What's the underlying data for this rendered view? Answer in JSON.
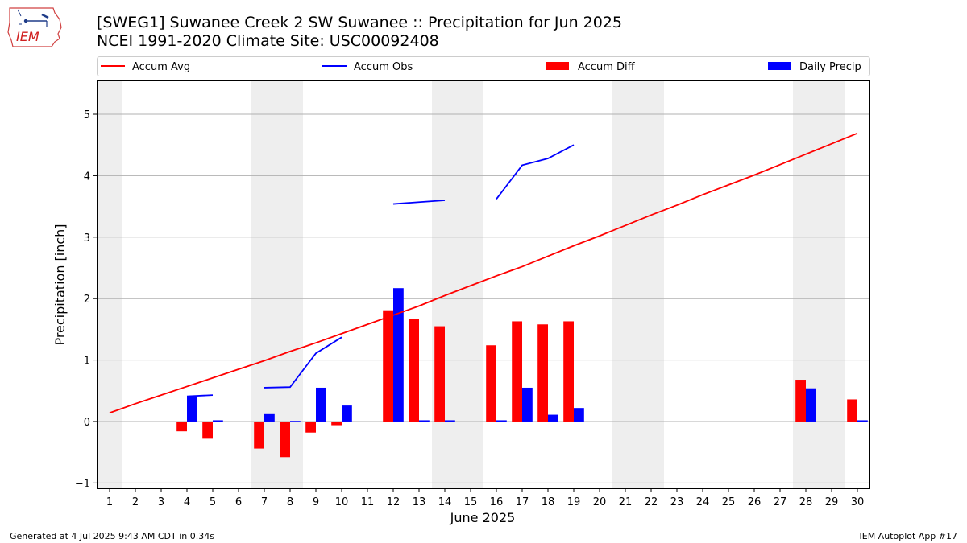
{
  "header": {
    "title_line1": "[SWEG1] Suwanee Creek 2 SW Suwanee :: Precipitation for Jun 2025",
    "title_line2": "NCEI 1991-2020 Climate Site: USC00092408",
    "logo_text": "IEM"
  },
  "footer": {
    "generated": "Generated at 4 Jul 2025 9:43 AM CDT in 0.34s",
    "app": "IEM Autoplot App #17"
  },
  "colors": {
    "avg": "#ff0000",
    "obs": "#0000ff",
    "diff": "#ff0000",
    "daily": "#0000ff",
    "weekend": "#eeeeee",
    "grid": "#b0b0b0"
  },
  "chart_data": {
    "type": "bar",
    "xlabel": "June 2025",
    "ylabel": "Precipitation [inch]",
    "xlim": [
      0.5,
      30.5
    ],
    "ylim": [
      -1.1,
      5.55
    ],
    "yticks": [
      -1,
      0,
      1,
      2,
      3,
      4,
      5
    ],
    "days": [
      1,
      2,
      3,
      4,
      5,
      6,
      7,
      8,
      9,
      10,
      11,
      12,
      13,
      14,
      15,
      16,
      17,
      18,
      19,
      20,
      21,
      22,
      23,
      24,
      25,
      26,
      27,
      28,
      29,
      30
    ],
    "weekend_spans": [
      [
        0.5,
        1.5
      ],
      [
        6.5,
        8.5
      ],
      [
        13.5,
        15.5
      ],
      [
        20.5,
        22.5
      ],
      [
        27.5,
        29.5
      ]
    ],
    "legend": [
      {
        "label": "Accum Avg",
        "kind": "line",
        "color": "#ff0000"
      },
      {
        "label": "Accum Obs",
        "kind": "line",
        "color": "#0000ff"
      },
      {
        "label": "Accum Diff",
        "kind": "bar",
        "color": "#ff0000"
      },
      {
        "label": "Daily Precip",
        "kind": "bar",
        "color": "#0000ff"
      }
    ],
    "legend_position": "top",
    "series": [
      {
        "name": "Accum Avg",
        "type": "line",
        "values": [
          0.14,
          0.29,
          0.43,
          0.57,
          0.71,
          0.85,
          0.99,
          1.14,
          1.28,
          1.43,
          1.58,
          1.73,
          1.88,
          2.05,
          2.21,
          2.37,
          2.52,
          2.69,
          2.86,
          3.02,
          3.19,
          3.36,
          3.52,
          3.69,
          3.85,
          4.01,
          4.18,
          4.35,
          4.52,
          4.69
        ]
      },
      {
        "name": "Accum Obs",
        "type": "line",
        "values": [
          null,
          null,
          null,
          0.41,
          0.43,
          null,
          0.55,
          0.56,
          1.11,
          1.37,
          null,
          3.54,
          3.57,
          3.6,
          null,
          3.62,
          4.17,
          4.28,
          4.5,
          null,
          null,
          null,
          null,
          null,
          null,
          null,
          null,
          null,
          null,
          null
        ]
      },
      {
        "name": "Accum Diff",
        "type": "bar",
        "values": [
          null,
          null,
          null,
          -0.16,
          -0.28,
          null,
          -0.44,
          -0.58,
          -0.18,
          -0.06,
          null,
          1.81,
          1.67,
          1.55,
          null,
          1.24,
          1.63,
          1.58,
          1.63,
          null,
          null,
          null,
          null,
          null,
          null,
          null,
          null,
          0.68,
          null,
          0.36
        ]
      },
      {
        "name": "Daily Precip",
        "type": "bar",
        "values": [
          null,
          null,
          null,
          0.41,
          0.02,
          null,
          0.12,
          0.01,
          0.55,
          0.26,
          null,
          2.17,
          0.02,
          0.02,
          null,
          0.02,
          0.55,
          0.11,
          0.22,
          null,
          null,
          null,
          null,
          null,
          null,
          null,
          null,
          0.54,
          null,
          0.02
        ]
      }
    ]
  }
}
